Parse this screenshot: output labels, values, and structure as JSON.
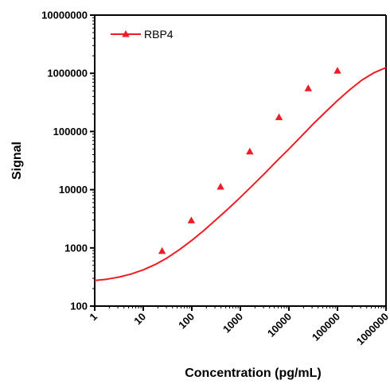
{
  "chart_data": {
    "type": "line",
    "xscale": "log",
    "yscale": "log",
    "xlabel": "Concentration (pg/mL)",
    "ylabel": "Signal",
    "xlim": [
      1,
      1000000
    ],
    "ylim": [
      100,
      10000000
    ],
    "x_ticks": [
      "1",
      "10",
      "100",
      "1000",
      "10000",
      "100000",
      "1000000"
    ],
    "y_ticks": [
      "100",
      "1000",
      "10000",
      "100000",
      "1000000",
      "10000000"
    ],
    "grid": false,
    "legend_position": "top-left",
    "series": [
      {
        "name": "RBP4",
        "color": "#ee1c24",
        "marker": "triangle",
        "x": [
          24.4,
          97.7,
          390.6,
          1562.5,
          6250,
          25000,
          100000
        ],
        "y": [
          880,
          2950,
          11200,
          45000,
          175000,
          550000,
          1100000
        ],
        "curve": {
          "x": [
            1,
            1.78,
            3.16,
            5.62,
            10,
            17.8,
            31.6,
            56.2,
            100,
            178,
            316,
            562,
            1000,
            1778,
            3162,
            5623,
            10000,
            17783,
            31623,
            56234,
            100000,
            177828,
            316228,
            562341,
            1000000
          ],
          "y": [
            275,
            290,
            315,
            355,
            420,
            520,
            680,
            940,
            1350,
            2000,
            3050,
            4700,
            7400,
            11800,
            19000,
            31000,
            50000,
            82000,
            135000,
            215000,
            340000,
            520000,
            760000,
            1020000,
            1250000
          ]
        }
      }
    ]
  }
}
